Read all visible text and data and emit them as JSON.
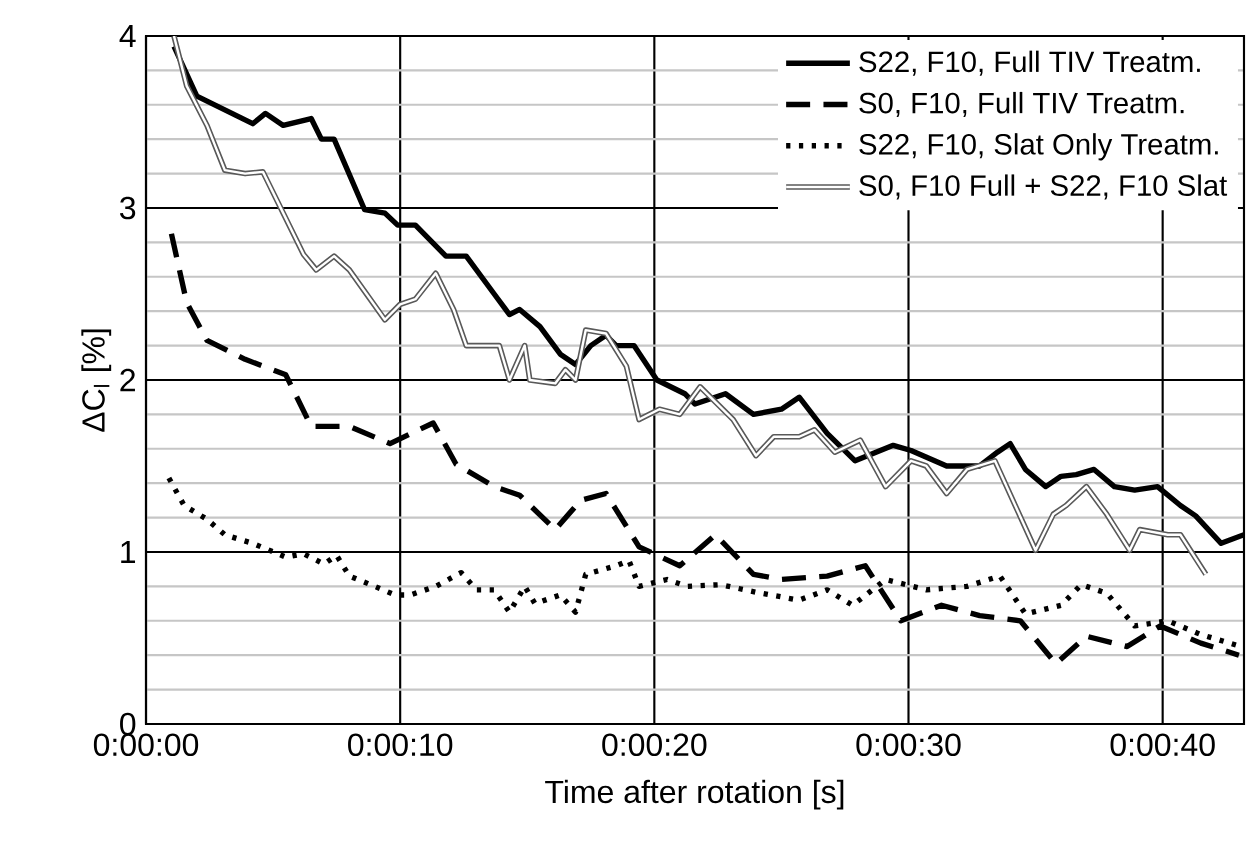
{
  "chart_data": {
    "type": "line",
    "xlabel": "Time after rotation [s]",
    "ylabel": "ΔC$_{l}$ [%]",
    "xlim": [
      0,
      43.2
    ],
    "ylim": [
      0,
      4
    ],
    "xticks": [
      {
        "value": 0,
        "label": "0:00:00"
      },
      {
        "value": 10,
        "label": "0:00:10"
      },
      {
        "value": 20,
        "label": "0:00:20"
      },
      {
        "value": 30,
        "label": "0:00:30"
      },
      {
        "value": 40,
        "label": "0:00:40"
      }
    ],
    "yticks": [
      0,
      1,
      2,
      3,
      4
    ],
    "grid": true,
    "legend": "top right",
    "series": [
      {
        "name": "S22, F10, Full TIV Treatm.",
        "color": "#000000",
        "line_style": "solid",
        "x": [
          1.1,
          2,
          4.2,
          4.7,
          5.4,
          6.5,
          6.9,
          7.4,
          8.6,
          9.4,
          9.9,
          10.6,
          11.8,
          12.6,
          13.7,
          14.3,
          14.7,
          15.5,
          16.3,
          16.9,
          17.5,
          18.1,
          18.5,
          19.2,
          20.1,
          21.2,
          21.6,
          22.8,
          23.9,
          25,
          25.7,
          26.8,
          27.9,
          29.4,
          30.1,
          31.5,
          32.8,
          33.5,
          34,
          34.6,
          35.4,
          36,
          36.6,
          37.3,
          38.1,
          38.9,
          39.8,
          40.7,
          41.3,
          42.3,
          43.2
        ],
        "values": [
          3.94,
          3.65,
          3.49,
          3.55,
          3.48,
          3.52,
          3.4,
          3.4,
          2.99,
          2.97,
          2.9,
          2.9,
          2.72,
          2.72,
          2.5,
          2.38,
          2.41,
          2.31,
          2.15,
          2.09,
          2.2,
          2.26,
          2.2,
          2.2,
          2.0,
          1.92,
          1.86,
          1.92,
          1.8,
          1.83,
          1.9,
          1.69,
          1.53,
          1.62,
          1.59,
          1.5,
          1.5,
          1.58,
          1.63,
          1.48,
          1.38,
          1.44,
          1.45,
          1.48,
          1.38,
          1.36,
          1.38,
          1.27,
          1.21,
          1.05,
          1.1
        ]
      },
      {
        "name": "S0, F10, Full TIV Treatm.",
        "color": "#000000",
        "line_style": "dashed",
        "x": [
          1.0,
          1.6,
          2.4,
          3.9,
          5.5,
          6.5,
          8,
          9.6,
          11.3,
          12.2,
          13.7,
          14.7,
          16.1,
          17.1,
          18.1,
          19.4,
          21,
          22.4,
          23.9,
          25,
          26.8,
          28.3,
          29.7,
          31.3,
          32.8,
          34.4,
          35.8,
          37,
          38.6,
          39.9,
          41.5,
          43
        ],
        "values": [
          2.85,
          2.45,
          2.23,
          2.12,
          2.03,
          1.73,
          1.73,
          1.63,
          1.75,
          1.51,
          1.38,
          1.33,
          1.13,
          1.3,
          1.34,
          1.03,
          0.92,
          1.1,
          0.87,
          0.84,
          0.86,
          0.92,
          0.6,
          0.69,
          0.63,
          0.6,
          0.35,
          0.51,
          0.45,
          0.57,
          0.47,
          0.4
        ]
      },
      {
        "name": "S22, F10, Slat Only Treatm.",
        "color": "#000000",
        "line_style": "dotted",
        "x": [
          0.9,
          1.5,
          2.4,
          3.1,
          4.2,
          5.5,
          6.2,
          7,
          7.5,
          8,
          9,
          9.8,
          10.4,
          11.4,
          12.4,
          13,
          13.7,
          14.3,
          14.9,
          15.3,
          16.3,
          16.9,
          17.3,
          18.5,
          19,
          19.4,
          20.5,
          21.3,
          22.6,
          24.2,
          25.7,
          26.8,
          27.8,
          29.1,
          30.7,
          32.3,
          33.6,
          34.6,
          36,
          36.8,
          37.8,
          38.9,
          40.2,
          41.5,
          43.1
        ],
        "values": [
          1.43,
          1.27,
          1.19,
          1.1,
          1.05,
          0.97,
          0.99,
          0.93,
          0.98,
          0.86,
          0.8,
          0.75,
          0.75,
          0.8,
          0.88,
          0.78,
          0.78,
          0.65,
          0.8,
          0.7,
          0.75,
          0.65,
          0.87,
          0.92,
          0.95,
          0.8,
          0.84,
          0.8,
          0.81,
          0.76,
          0.72,
          0.78,
          0.69,
          0.84,
          0.78,
          0.8,
          0.86,
          0.64,
          0.69,
          0.81,
          0.76,
          0.57,
          0.6,
          0.52,
          0.45
        ]
      },
      {
        "name": "S0, F10 Full + S22, F10 Slat",
        "color": "#595959",
        "line_style": "solid",
        "x": [
          1.1,
          1.6,
          2.4,
          3.1,
          3.9,
          4.6,
          5.4,
          6.2,
          6.7,
          7.4,
          8,
          9.4,
          10,
          10.6,
          11.4,
          12.1,
          12.6,
          13.3,
          13.9,
          14.3,
          14.9,
          15.1,
          16.1,
          16.5,
          16.9,
          17.3,
          18.1,
          18.9,
          19.4,
          20.2,
          21,
          21.8,
          23.1,
          24,
          24.7,
          25.7,
          26.3,
          27.1,
          28.1,
          29.1,
          30.1,
          30.7,
          31.5,
          32.3,
          33.4,
          35,
          35.7,
          36.2,
          37,
          37.8,
          38.7,
          39.1,
          40.2,
          40.7,
          41.7
        ],
        "values": [
          4.0,
          3.71,
          3.48,
          3.22,
          3.2,
          3.21,
          2.97,
          2.73,
          2.64,
          2.72,
          2.64,
          2.35,
          2.44,
          2.47,
          2.62,
          2.41,
          2.2,
          2.2,
          2.2,
          2.0,
          2.2,
          2.0,
          1.98,
          2.06,
          2.0,
          2.29,
          2.27,
          2.08,
          1.77,
          1.83,
          1.8,
          1.96,
          1.77,
          1.56,
          1.67,
          1.67,
          1.71,
          1.58,
          1.65,
          1.38,
          1.53,
          1.5,
          1.34,
          1.48,
          1.53,
          1.01,
          1.22,
          1.27,
          1.38,
          1.22,
          1.01,
          1.13,
          1.1,
          1.1,
          0.87
        ]
      }
    ]
  }
}
